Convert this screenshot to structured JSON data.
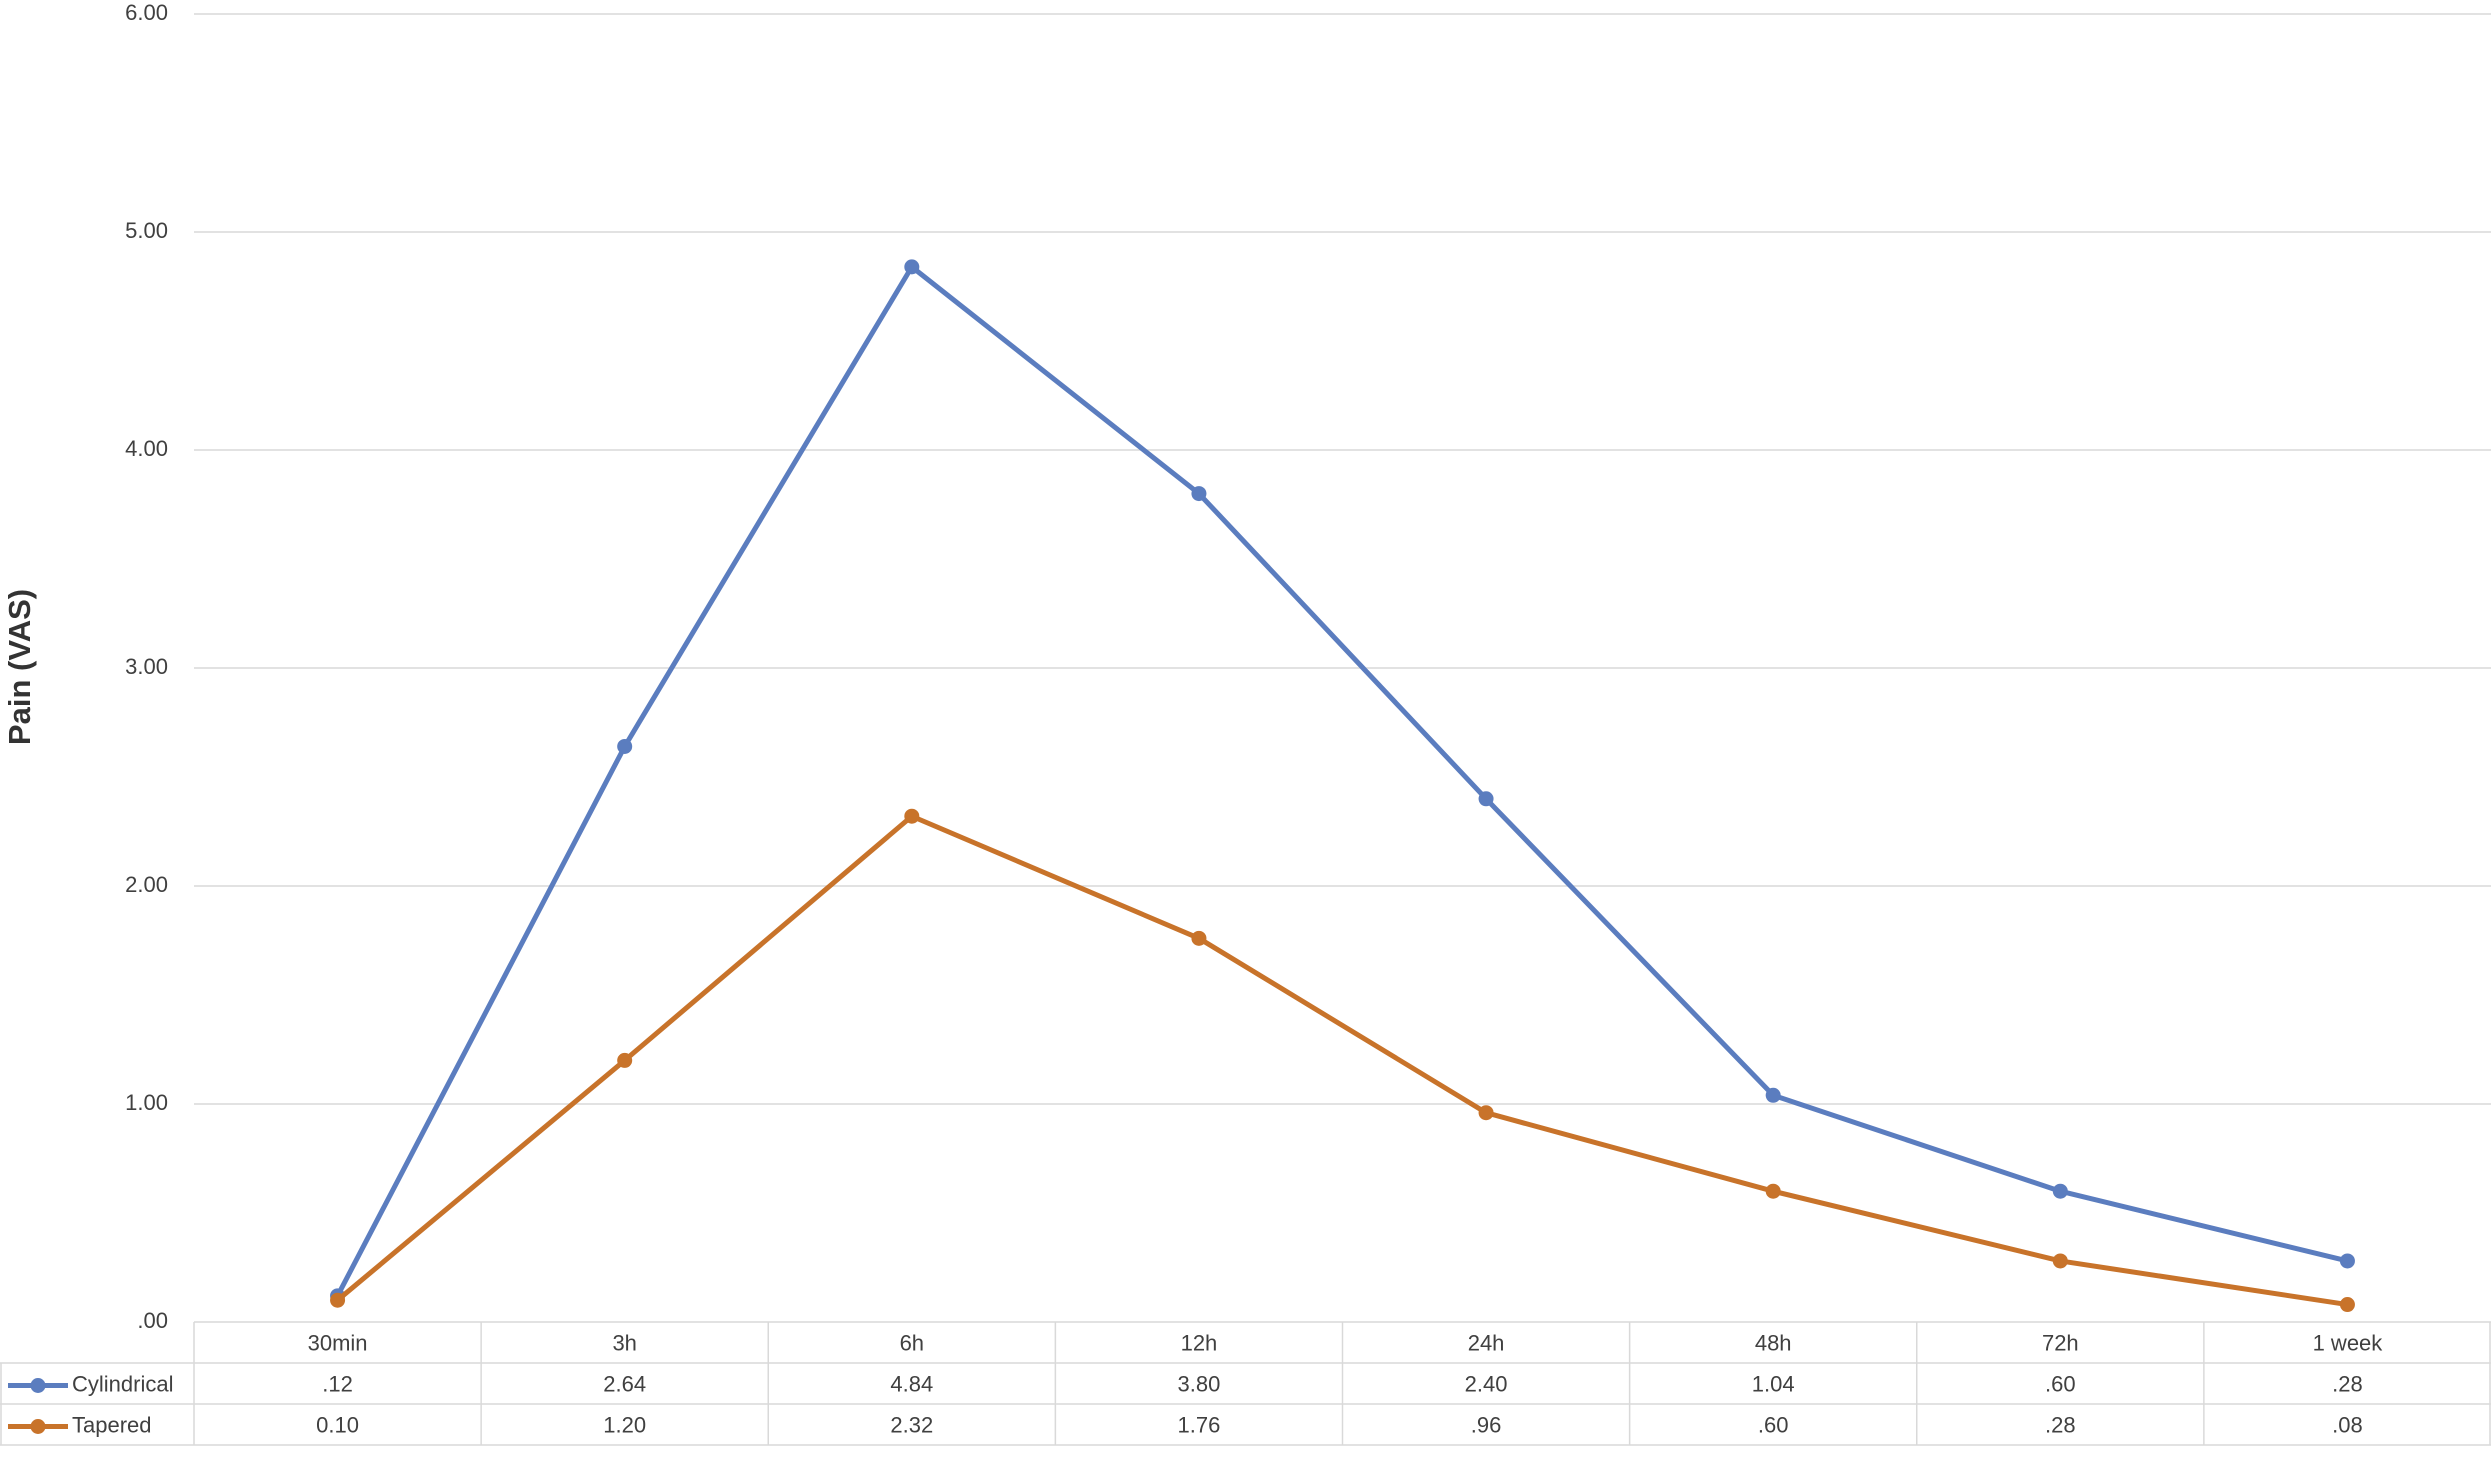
{
  "chart_data": {
    "type": "line",
    "y_label": "Pain (VAS)",
    "categories": [
      "30min",
      "3h",
      "6h",
      "12h",
      "24h",
      "48h",
      "72h",
      "1 week"
    ],
    "series": [
      {
        "name": "Cylindrical",
        "color": "#5b7dbf",
        "values": [
          0.12,
          2.64,
          4.84,
          3.8,
          2.4,
          1.04,
          0.6,
          0.28
        ],
        "value_labels": [
          ".12",
          "2.64",
          "4.84",
          "3.80",
          "2.40",
          "1.04",
          ".60",
          ".28"
        ]
      },
      {
        "name": "Tapered",
        "color": "#c8732a",
        "values": [
          0.1,
          1.2,
          2.32,
          1.76,
          0.96,
          0.6,
          0.28,
          0.08
        ],
        "value_labels": [
          "0.10",
          "1.20",
          "2.32",
          "1.76",
          ".96",
          ".60",
          ".28",
          ".08"
        ]
      }
    ],
    "ylim": [
      0,
      6
    ],
    "yticks": [
      {
        "value": 0,
        "label": ".00"
      },
      {
        "value": 1,
        "label": "1.00"
      },
      {
        "value": 2,
        "label": "2.00"
      },
      {
        "value": 3,
        "label": "3.00"
      },
      {
        "value": 4,
        "label": "4.00"
      },
      {
        "value": 5,
        "label": "5.00"
      },
      {
        "value": 6,
        "label": "6.00"
      }
    ],
    "grid": true
  }
}
